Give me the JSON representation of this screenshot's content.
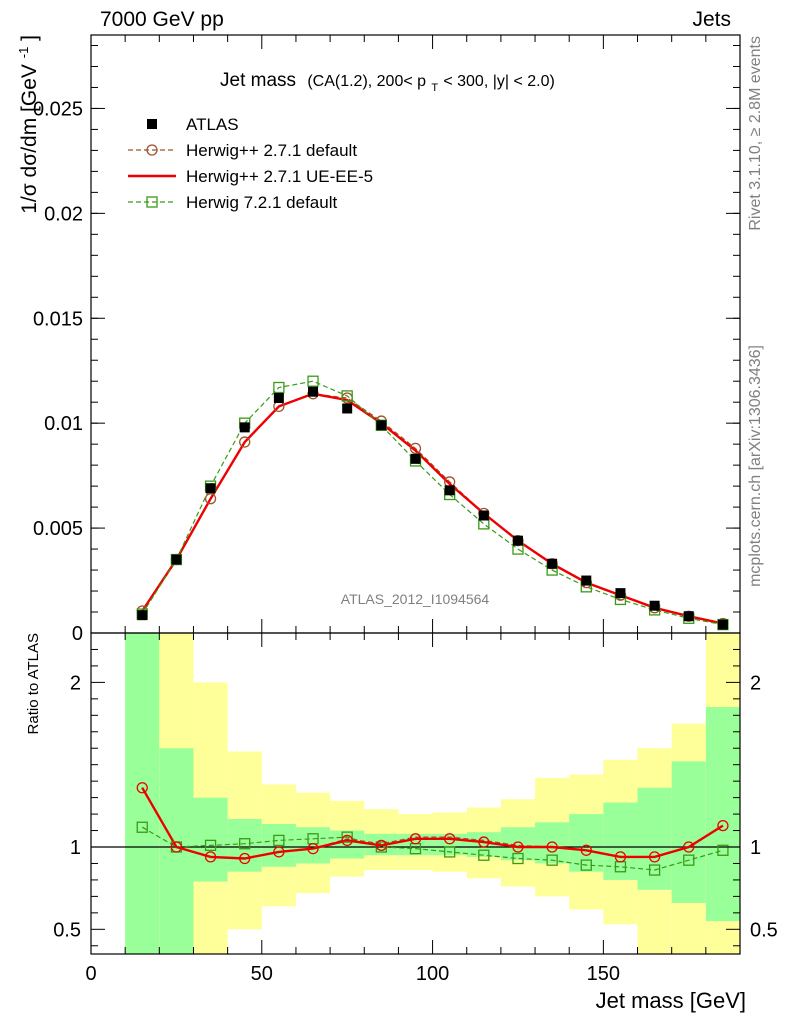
{
  "header": {
    "left": "7000 GeV pp",
    "right": "Jets",
    "side_top": "Rivet 3.1.10, ≥ 2.8M events",
    "side_bottom": "mcplots.cern.ch [arXiv:1306.3436]",
    "watermark": "ATLAS_2012_I1094564"
  },
  "chart_data": [
    {
      "type": "scatter",
      "panel": "main",
      "title": "Jet mass",
      "subtitle_parts": [
        "(CA(1.2), 200< p",
        "T",
        " < 300, |y| < 2.0)"
      ],
      "ylabel": "1/σ dσ/dm [GeV",
      "ylabel_sup": "-1",
      "ylabel_close": "]",
      "xlim": [
        0,
        190
      ],
      "ylim": [
        0,
        0.0285
      ],
      "yticks": [
        0,
        0.005,
        0.01,
        0.015,
        0.02,
        0.025
      ],
      "ytick_labels": [
        "0",
        "0.005",
        "0.01",
        "0.015",
        "0.02",
        "0.025"
      ],
      "x": [
        15,
        25,
        35,
        45,
        55,
        65,
        75,
        85,
        95,
        105,
        115,
        125,
        135,
        145,
        155,
        165,
        175,
        185
      ],
      "legend_position": "top-left",
      "series": [
        {
          "name": "ATLAS",
          "marker": "filled-square",
          "color": "#000000",
          "values": [
            0.00085,
            0.0035,
            0.0069,
            0.0098,
            0.0112,
            0.0115,
            0.0107,
            0.0099,
            0.0083,
            0.0068,
            0.0056,
            0.0044,
            0.0033,
            0.0025,
            0.0019,
            0.0013,
            0.0008,
            0.0004
          ]
        },
        {
          "name": "Herwig++ 2.7.1 default",
          "marker": "open-circle",
          "line": "dashed",
          "color": "#a0522d",
          "values": [
            0.00105,
            0.0035,
            0.0064,
            0.0091,
            0.0108,
            0.0114,
            0.0112,
            0.0101,
            0.0088,
            0.0072,
            0.0057,
            0.0044,
            0.0033,
            0.0024,
            0.0018,
            0.0012,
            0.0008,
            0.00045
          ]
        },
        {
          "name": "Herwig++ 2.7.1 UE-EE-5",
          "marker": "none",
          "line": "solid",
          "color": "#ee0000",
          "values": [
            0.00105,
            0.0035,
            0.0064,
            0.0091,
            0.0108,
            0.0114,
            0.0111,
            0.01,
            0.0087,
            0.0071,
            0.0057,
            0.0044,
            0.0033,
            0.0024,
            0.0018,
            0.0012,
            0.0008,
            0.00045
          ]
        },
        {
          "name": "Herwig 7.2.1 default",
          "marker": "open-square",
          "line": "dashed",
          "color": "#3a9a17",
          "values": [
            0.0009,
            0.0035,
            0.007,
            0.01,
            0.0117,
            0.012,
            0.0113,
            0.0099,
            0.0082,
            0.0066,
            0.0052,
            0.004,
            0.003,
            0.0022,
            0.0016,
            0.0011,
            0.0007,
            0.0004
          ]
        }
      ]
    },
    {
      "type": "scatter",
      "panel": "ratio",
      "ylabel": "Ratio to ATLAS",
      "xlabel": "Jet mass [GeV]",
      "xlim": [
        0,
        190
      ],
      "ylim": [
        0.35,
        2.3
      ],
      "xticks": [
        0,
        50,
        100,
        150
      ],
      "xtick_labels": [
        "0",
        "50",
        "100",
        "150"
      ],
      "yticks": [
        0.5,
        1,
        2
      ],
      "ytick_labels": [
        "0.5",
        "1",
        "2"
      ],
      "band_edges": [
        10,
        20,
        30,
        40,
        50,
        60,
        70,
        80,
        90,
        100,
        110,
        120,
        130,
        140,
        150,
        160,
        170,
        180,
        190
      ],
      "band_inner_color": "#99ff99",
      "band_outer_color": "#ffff99",
      "band_inner": {
        "low": [
          0.35,
          0.35,
          0.79,
          0.85,
          0.88,
          0.9,
          0.93,
          0.95,
          0.95,
          0.95,
          0.94,
          0.92,
          0.9,
          0.85,
          0.8,
          0.74,
          0.66,
          0.55
        ],
        "high": [
          2.3,
          1.6,
          1.3,
          1.17,
          1.14,
          1.12,
          1.1,
          1.08,
          1.08,
          1.08,
          1.09,
          1.12,
          1.15,
          1.2,
          1.27,
          1.36,
          1.52,
          1.85
        ]
      },
      "band_outer": {
        "low": [
          0.35,
          0.35,
          0.35,
          0.35,
          0.35,
          0.35,
          0.35,
          0.35,
          0.35,
          0.35,
          0.35,
          0.35,
          0.35,
          0.35,
          0.35,
          0.35,
          0.35,
          0.35
        ],
        "high": [
          2.3,
          2.3,
          2.3,
          2.3,
          2.3,
          2.3,
          2.3,
          2.3,
          2.3,
          2.3,
          2.3,
          2.3,
          2.3,
          2.3,
          2.3,
          2.3,
          2.3,
          2.3
        ]
      },
      "band_yellow": {
        "low": [
          0.35,
          0.35,
          0.35,
          0.5,
          0.64,
          0.72,
          0.82,
          0.86,
          0.86,
          0.85,
          0.81,
          0.76,
          0.7,
          0.62,
          0.53,
          0.35,
          0.35,
          0.35
        ],
        "high": [
          2.3,
          2.3,
          2.0,
          1.58,
          1.38,
          1.33,
          1.28,
          1.23,
          1.2,
          1.21,
          1.24,
          1.29,
          1.42,
          1.44,
          1.53,
          1.6,
          1.75,
          2.3
        ]
      },
      "series": [
        {
          "name": "Herwig++ 2.7.1 default",
          "marker": "open-circle",
          "line": "dashed",
          "color": "#a0522d",
          "values": [
            1.36,
            1.0,
            0.94,
            0.93,
            0.97,
            0.99,
            1.05,
            1.02,
            1.06,
            1.06,
            1.04,
            1.01,
            1.0,
            0.98,
            0.94,
            0.94,
            1.0,
            1.13
          ]
        },
        {
          "name": "Herwig++ 2.7.1 UE-EE-5",
          "marker": "open-circle",
          "line": "solid",
          "color": "#ee0000",
          "values": [
            1.36,
            1.0,
            0.94,
            0.93,
            0.97,
            0.99,
            1.04,
            1.01,
            1.05,
            1.05,
            1.03,
            1.0,
            1.0,
            0.98,
            0.94,
            0.94,
            1.0,
            1.13
          ]
        },
        {
          "name": "Herwig 7.2.1 default",
          "marker": "open-square",
          "line": "dashed",
          "color": "#3a9a17",
          "values": [
            1.12,
            1.0,
            1.01,
            1.02,
            1.04,
            1.05,
            1.06,
            1.0,
            0.99,
            0.97,
            0.95,
            0.93,
            0.92,
            0.89,
            0.88,
            0.86,
            0.92,
            0.98
          ]
        }
      ]
    }
  ]
}
